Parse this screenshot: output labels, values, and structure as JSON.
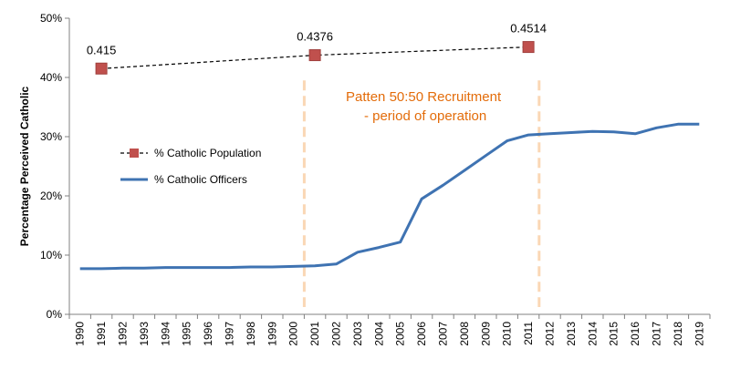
{
  "chart_data": {
    "type": "line",
    "title": "",
    "xlabel": "",
    "ylabel": "Percentage Perceived Catholic",
    "x": [
      "1990",
      "1991",
      "1992",
      "1993",
      "1994",
      "1995",
      "1996",
      "1997",
      "1998",
      "1999",
      "2000",
      "2001",
      "2002",
      "2003",
      "2004",
      "2005",
      "2006",
      "2007",
      "2008",
      "2009",
      "2010",
      "2011",
      "2012",
      "2013",
      "2014",
      "2015",
      "2016",
      "2017",
      "2018",
      "2019"
    ],
    "ylim": [
      0,
      0.5
    ],
    "y_ticks": [
      "0%",
      "10%",
      "20%",
      "30%",
      "40%",
      "50%"
    ],
    "grid": false,
    "legend_position": "left",
    "series": [
      {
        "name": "% Catholic Population",
        "style": "dashed-with-square-markers",
        "color": "#C0504D",
        "line_color": "#000000",
        "points": [
          {
            "x": "1991",
            "y": 0.415,
            "label": "0.415"
          },
          {
            "x": "2001",
            "y": 0.4376,
            "label": "0.4376"
          },
          {
            "x": "2011",
            "y": 0.4514,
            "label": "0.4514"
          }
        ]
      },
      {
        "name": "% Catholic Officers",
        "style": "solid",
        "color": "#3F73B2",
        "values": [
          0.077,
          0.077,
          0.078,
          0.078,
          0.079,
          0.079,
          0.079,
          0.079,
          0.08,
          0.08,
          0.081,
          0.082,
          0.085,
          0.105,
          0.113,
          0.122,
          0.195,
          0.218,
          0.243,
          0.268,
          0.293,
          0.303,
          0.305,
          0.307,
          0.309,
          0.308,
          0.305,
          0.315,
          0.321,
          0.321
        ]
      }
    ],
    "annotation": {
      "line1": "Patten 50:50 Recruitment",
      "line2": "- period of operation",
      "color": "#E36C0A",
      "span": [
        "2001",
        "2012"
      ],
      "marker_color": "#FAD7B5"
    }
  }
}
